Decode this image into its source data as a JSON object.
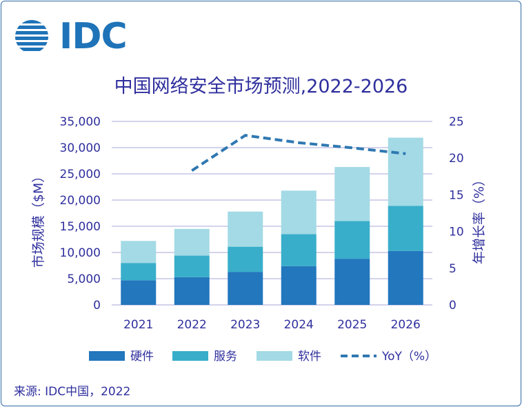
{
  "logo": {
    "text": "IDC"
  },
  "title": "中国网络安全市场预测,2022-2026",
  "source": "来源: IDC中国，2022",
  "colors": {
    "hardware": "#2277bd",
    "services": "#38aeca",
    "software": "#a3dae5",
    "yoy": "#2f78b2",
    "axis_text": "#2f2f9e",
    "grid": "#b9b9e0"
  },
  "chart_data": {
    "type": "bar",
    "stacked": true,
    "title": "中国网络安全市场预测,2022-2026",
    "categories": [
      "2021",
      "2022",
      "2023",
      "2024",
      "2025",
      "2026"
    ],
    "series": [
      {
        "name": "硬件",
        "values": [
          4700,
          5300,
          6300,
          7400,
          8800,
          10300
        ]
      },
      {
        "name": "服务",
        "values": [
          3300,
          4100,
          4800,
          6100,
          7200,
          8600
        ]
      },
      {
        "name": "软件",
        "values": [
          4200,
          5100,
          6700,
          8300,
          10300,
          13000
        ]
      }
    ],
    "line_series": {
      "name": "YoY（%）",
      "axis": "right",
      "style": "dashed",
      "values": [
        null,
        18.3,
        23.1,
        22.1,
        21.4,
        20.6
      ]
    },
    "ylabel": "市场规模（$M）",
    "y2label": "年增长率（%）",
    "ylim": [
      0,
      35000
    ],
    "y2lim": [
      0,
      25
    ],
    "yticks": [
      "35,000",
      "30,000",
      "25,000",
      "20,000",
      "15,000",
      "10,000",
      "5,000",
      "0"
    ],
    "y2ticks": [
      "25",
      "20",
      "15",
      "10",
      "5",
      "0"
    ],
    "legend": [
      "硬件",
      "服务",
      "软件",
      "YoY（%）"
    ],
    "legend_position": "bottom",
    "grid": true
  }
}
